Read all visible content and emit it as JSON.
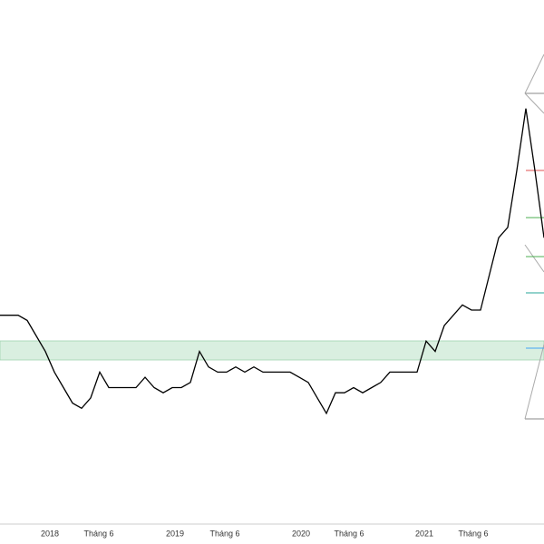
{
  "chart_data": {
    "type": "line",
    "xtick_labels": [
      "2018",
      "Tháng 6",
      "2019",
      "Tháng 6",
      "2020",
      "Tháng 6",
      "2021",
      "Tháng 6"
    ],
    "ylim": [
      0,
      100
    ],
    "series": [
      {
        "color": "#000000",
        "values": [
          39,
          39,
          39,
          38,
          35,
          32,
          28,
          25,
          22,
          21,
          23,
          28,
          25,
          25,
          25,
          25,
          27,
          25,
          24,
          25,
          25,
          26,
          32,
          29,
          28,
          28,
          29,
          28,
          29,
          28,
          28,
          28,
          28,
          27,
          26,
          23,
          20,
          24,
          24,
          25,
          24,
          25,
          26,
          28,
          28,
          28,
          28,
          34,
          32,
          37,
          39,
          41,
          40,
          40,
          47,
          54,
          56,
          67,
          79,
          67,
          54
        ]
      }
    ]
  }
}
